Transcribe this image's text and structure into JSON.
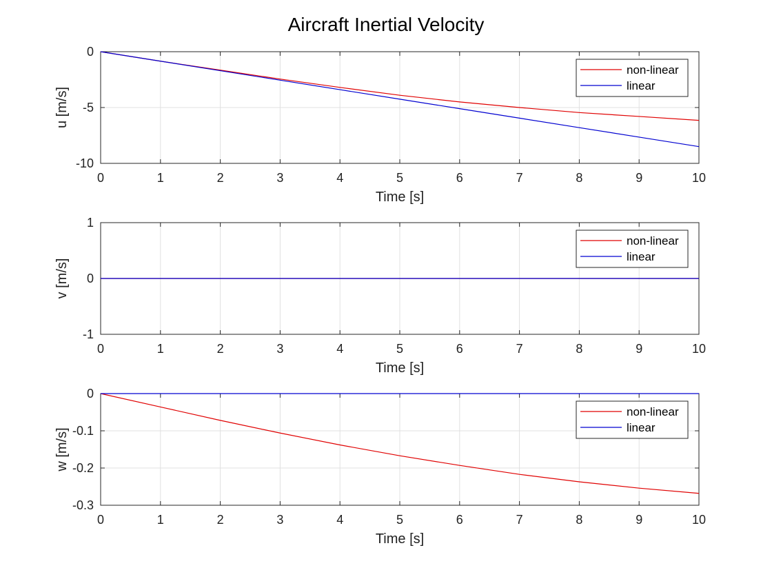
{
  "title": "Aircraft Inertial Velocity",
  "chart_data": [
    {
      "type": "line",
      "ylabel": "u [m/s]",
      "xlabel": "Time [s]",
      "xlim": [
        0,
        10
      ],
      "ylim": [
        -10,
        0
      ],
      "xticks": [
        "0",
        "1",
        "2",
        "3",
        "4",
        "5",
        "6",
        "7",
        "8",
        "9",
        "10"
      ],
      "yticks": [
        "0",
        "-5",
        "-10"
      ],
      "ytick_values": [
        0,
        -5,
        -10
      ],
      "grid": true,
      "legend_position": "top-right",
      "series": [
        {
          "name": "non-linear",
          "color": "#e00000",
          "x": [
            0,
            1,
            2,
            3,
            4,
            5,
            6,
            7,
            8,
            9,
            10
          ],
          "y": [
            0,
            -0.85,
            -1.65,
            -2.45,
            -3.2,
            -3.9,
            -4.5,
            -5.0,
            -5.45,
            -5.8,
            -6.15
          ]
        },
        {
          "name": "linear",
          "color": "#0000d0",
          "x": [
            0,
            1,
            2,
            3,
            4,
            5,
            6,
            7,
            8,
            9,
            10
          ],
          "y": [
            0,
            -0.85,
            -1.7,
            -2.55,
            -3.4,
            -4.25,
            -5.1,
            -5.95,
            -6.8,
            -7.65,
            -8.5
          ]
        }
      ]
    },
    {
      "type": "line",
      "ylabel": "v [m/s]",
      "xlabel": "Time [s]",
      "xlim": [
        0,
        10
      ],
      "ylim": [
        -1,
        1
      ],
      "xticks": [
        "0",
        "1",
        "2",
        "3",
        "4",
        "5",
        "6",
        "7",
        "8",
        "9",
        "10"
      ],
      "yticks": [
        "1",
        "0",
        "-1"
      ],
      "ytick_values": [
        1,
        0,
        -1
      ],
      "grid": true,
      "legend_position": "top-right",
      "series": [
        {
          "name": "non-linear",
          "color": "#e00000",
          "x": [
            0,
            1,
            2,
            3,
            4,
            5,
            6,
            7,
            8,
            9,
            10
          ],
          "y": [
            0,
            0,
            0,
            0,
            0,
            0,
            0,
            0,
            0,
            0,
            0
          ]
        },
        {
          "name": "linear",
          "color": "#0000d0",
          "x": [
            0,
            1,
            2,
            3,
            4,
            5,
            6,
            7,
            8,
            9,
            10
          ],
          "y": [
            0,
            0,
            0,
            0,
            0,
            0,
            0,
            0,
            0,
            0,
            0
          ]
        }
      ]
    },
    {
      "type": "line",
      "ylabel": "w [m/s]",
      "xlabel": "Time [s]",
      "xlim": [
        0,
        10
      ],
      "ylim": [
        -0.3,
        0
      ],
      "xticks": [
        "0",
        "1",
        "2",
        "3",
        "4",
        "5",
        "6",
        "7",
        "8",
        "9",
        "10"
      ],
      "yticks": [
        "0",
        "-0.1",
        "-0.2",
        "-0.3"
      ],
      "ytick_values": [
        0,
        -0.1,
        -0.2,
        -0.3
      ],
      "grid": true,
      "legend_position": "top-right",
      "series": [
        {
          "name": "non-linear",
          "color": "#e00000",
          "x": [
            0,
            1,
            2,
            3,
            4,
            5,
            6,
            7,
            8,
            9,
            10
          ],
          "y": [
            0,
            -0.036,
            -0.072,
            -0.106,
            -0.138,
            -0.167,
            -0.193,
            -0.217,
            -0.237,
            -0.254,
            -0.268
          ]
        },
        {
          "name": "linear",
          "color": "#0000d0",
          "x": [
            0,
            1,
            2,
            3,
            4,
            5,
            6,
            7,
            8,
            9,
            10
          ],
          "y": [
            0,
            0,
            0,
            0,
            0,
            0,
            0,
            0,
            0,
            0,
            0
          ]
        }
      ]
    }
  ]
}
